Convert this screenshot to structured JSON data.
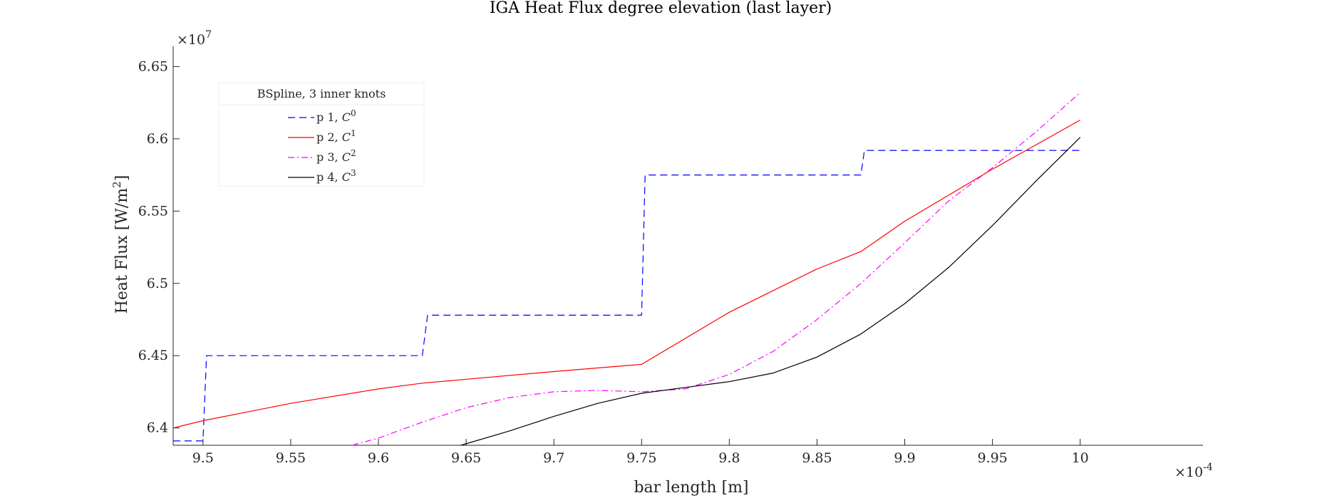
{
  "chart_data": {
    "type": "line",
    "title": "IGA Heat Flux degree elevation (last layer)",
    "xlabel": "bar length [m]",
    "ylabel": "Heat Flux [W/m^2]",
    "x_multiplier": "×10^-4",
    "y_multiplier": "×10^7",
    "xlim": [
      9.483,
      10.07
    ],
    "ylim": [
      6.388,
      6.664
    ],
    "xticks": [
      "9.5",
      "9.55",
      "9.6",
      "9.65",
      "9.7",
      "9.75",
      "9.8",
      "9.85",
      "9.9",
      "9.95",
      "10"
    ],
    "xtick_values": [
      9.5,
      9.55,
      9.6,
      9.65,
      9.7,
      9.75,
      9.8,
      9.85,
      9.9,
      9.95,
      10.0
    ],
    "yticks": [
      "6.4",
      "6.45",
      "6.5",
      "6.55",
      "6.6",
      "6.65"
    ],
    "ytick_values": [
      6.4,
      6.45,
      6.5,
      6.55,
      6.6,
      6.65
    ],
    "grid": false,
    "legend": {
      "title": "BSpline, 3 inner knots",
      "placement": "top-left",
      "entries": [
        {
          "label": "p 1, ",
          "sym": "C",
          "sup": "0"
        },
        {
          "label": "p 2, ",
          "sym": "C",
          "sup": "1"
        },
        {
          "label": "p 3, ",
          "sym": "C",
          "sup": "2"
        },
        {
          "label": "p 4, ",
          "sym": "C",
          "sup": "3"
        }
      ]
    },
    "series": [
      {
        "name": "p 1, C^0",
        "color": "#0000ff",
        "dash": "dashed",
        "x": [
          9.483,
          9.5,
          9.502,
          9.625,
          9.628,
          9.75,
          9.752,
          9.875,
          9.877,
          10.0
        ],
        "y": [
          6.391,
          6.391,
          6.45,
          6.45,
          6.478,
          6.478,
          6.575,
          6.575,
          6.592,
          6.592
        ]
      },
      {
        "name": "p 2, C^1",
        "color": "#ff0000",
        "dash": "solid",
        "x": [
          9.483,
          9.5,
          9.55,
          9.6,
          9.625,
          9.7,
          9.75,
          9.8,
          9.85,
          9.875,
          9.9,
          9.95,
          10.0
        ],
        "y": [
          6.4,
          6.405,
          6.417,
          6.427,
          6.431,
          6.439,
          6.444,
          6.48,
          6.51,
          6.522,
          6.543,
          6.579,
          6.613
        ]
      },
      {
        "name": "p 3, C^2",
        "color": "#ff00ff",
        "dash": "dashdot",
        "x": [
          9.585,
          9.6,
          9.625,
          9.65,
          9.675,
          9.7,
          9.725,
          9.75,
          9.775,
          9.8,
          9.825,
          9.85,
          9.875,
          9.9,
          9.925,
          9.95,
          9.975,
          10.0
        ],
        "y": [
          6.388,
          6.393,
          6.404,
          6.414,
          6.421,
          6.425,
          6.426,
          6.425,
          6.427,
          6.437,
          6.453,
          6.475,
          6.5,
          6.528,
          6.557,
          6.58,
          6.605,
          6.632
        ]
      },
      {
        "name": "p 4, C^3",
        "color": "#000000",
        "dash": "solid",
        "x": [
          9.647,
          9.675,
          9.7,
          9.725,
          9.75,
          9.775,
          9.8,
          9.825,
          9.85,
          9.875,
          9.9,
          9.925,
          9.95,
          9.975,
          10.0
        ],
        "y": [
          6.388,
          6.398,
          6.408,
          6.417,
          6.424,
          6.428,
          6.432,
          6.438,
          6.449,
          6.465,
          6.486,
          6.511,
          6.54,
          6.571,
          6.601
        ]
      }
    ]
  }
}
